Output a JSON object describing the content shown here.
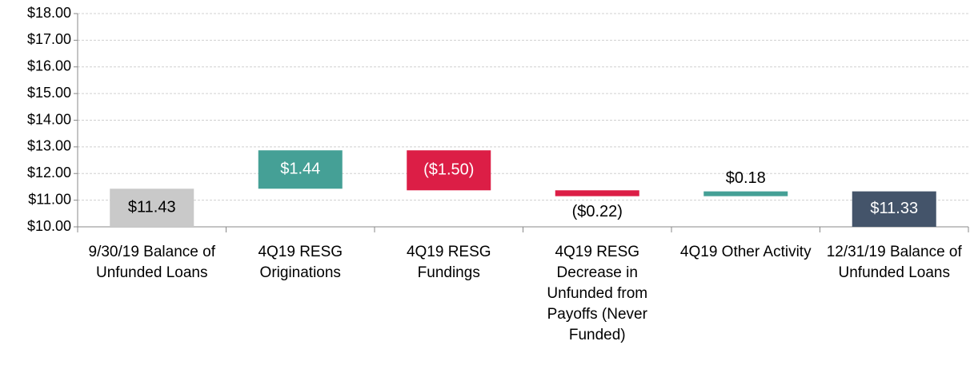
{
  "chart_data": {
    "type": "waterfall",
    "categories": [
      "9/30/19 Balance of Unfunded Loans",
      "4Q19 RESG Originations",
      "4Q19 RESG Fundings",
      "4Q19 RESG Decrease in Unfunded from Payoffs (Never Funded)",
      "4Q19 Other Activity",
      "12/31/19 Balance of Unfunded Loans"
    ],
    "values": [
      11.43,
      1.44,
      -1.5,
      -0.22,
      0.18,
      11.33
    ],
    "value_labels": [
      "$11.43",
      "$1.44",
      "($1.50)",
      "($0.22)",
      "$0.18",
      "$11.33"
    ],
    "bar_types": [
      "total",
      "increase",
      "decrease",
      "decrease",
      "increase",
      "total"
    ],
    "colors": [
      "#c9c9c9",
      "#45a096",
      "#dc1e46",
      "#dc1e46",
      "#45a096",
      "#44546a"
    ],
    "ylim": [
      10,
      18
    ],
    "yticks": [
      {
        "value": 10,
        "label": "$10.00"
      },
      {
        "value": 11,
        "label": "$11.00"
      },
      {
        "value": 12,
        "label": "$12.00"
      },
      {
        "value": 13,
        "label": "$13.00"
      },
      {
        "value": 14,
        "label": "$14.00"
      },
      {
        "value": 15,
        "label": "$15.00"
      },
      {
        "value": 16,
        "label": "$16.00"
      },
      {
        "value": 17,
        "label": "$17.00"
      },
      {
        "value": 18,
        "label": "$18.00"
      }
    ],
    "grid": true
  }
}
